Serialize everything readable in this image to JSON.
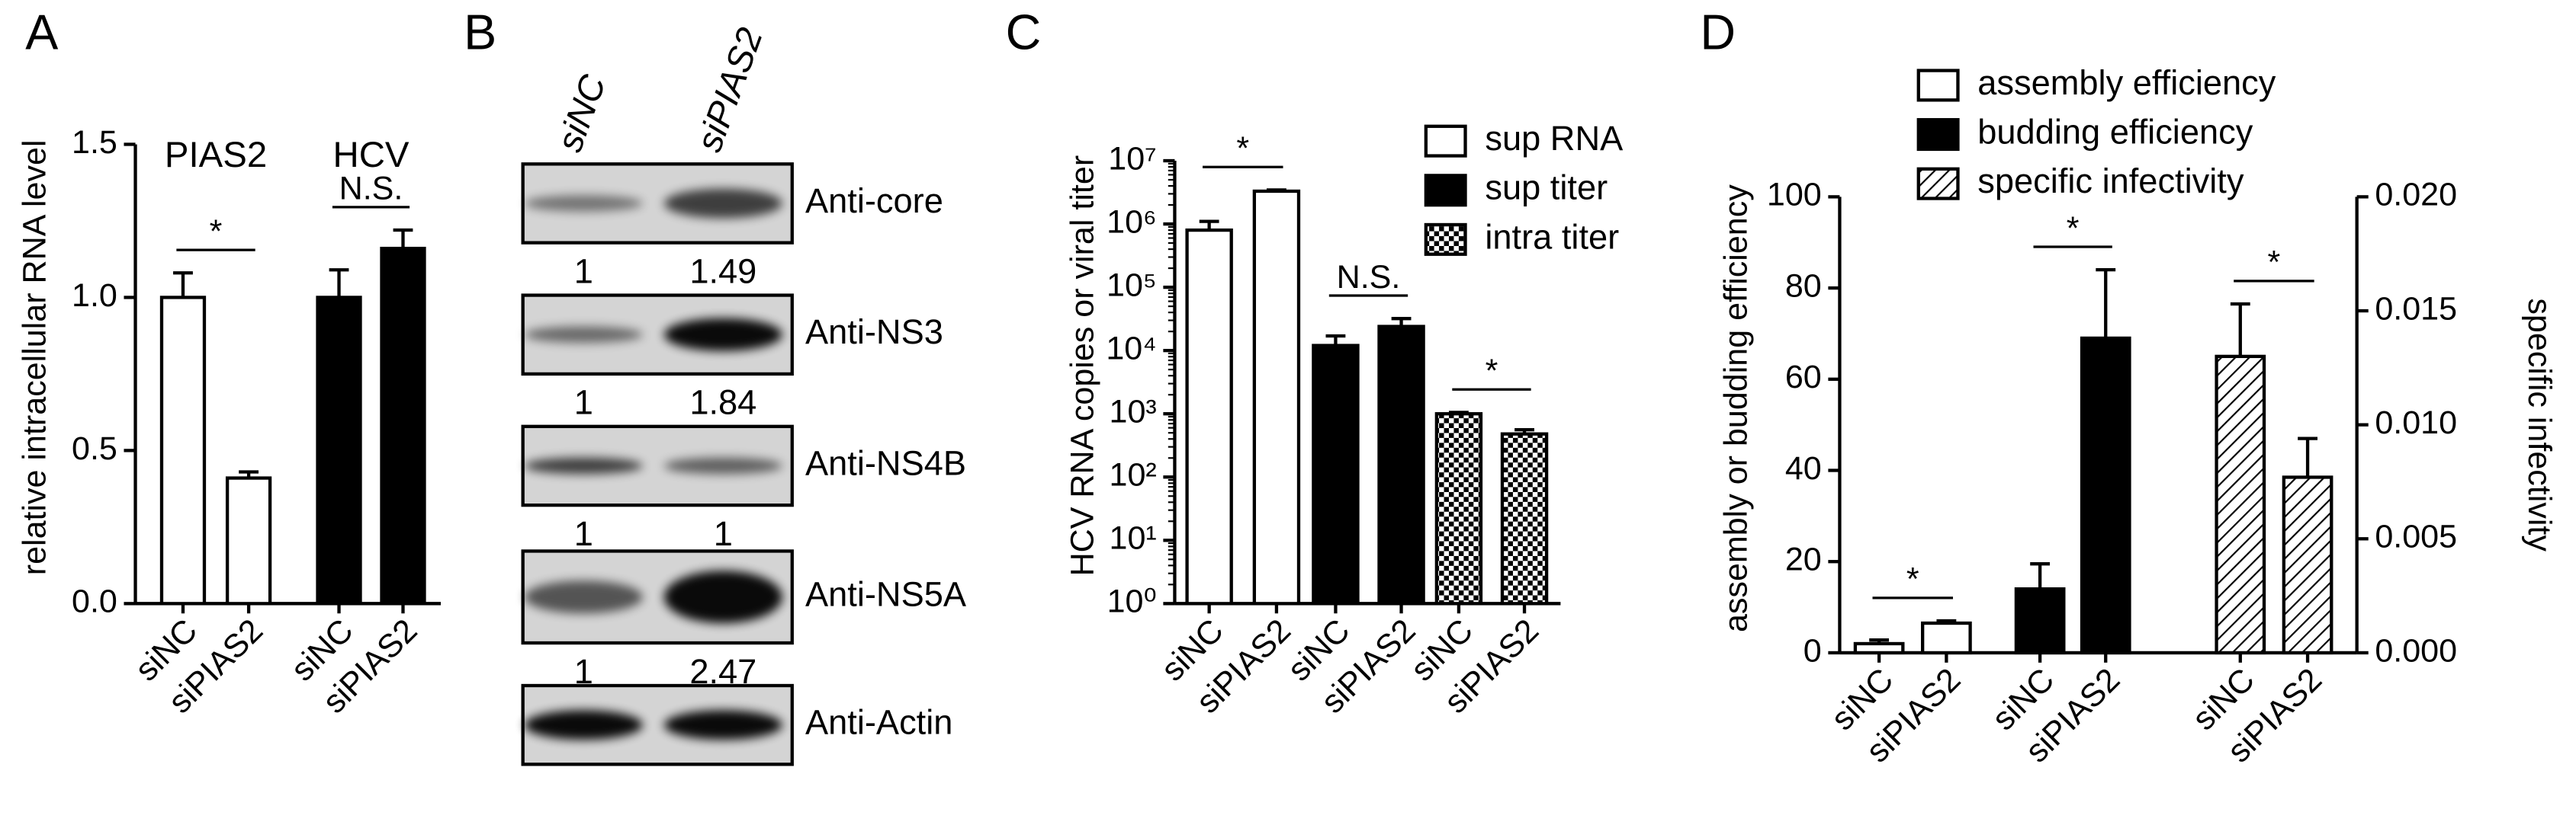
{
  "chart_data": [
    {
      "type": "bar",
      "panel": "A",
      "ylabel": "relative intracellular RNA level",
      "legend": "none",
      "categories": [
        "siNC",
        "siPIAS2",
        "siNC",
        "siPIAS2"
      ],
      "series": [
        {
          "name": "PIAS2",
          "color": "#ffffff",
          "values": [
            1.0,
            0.41,
            null,
            null
          ],
          "errors": [
            0.08,
            0.02,
            null,
            null
          ]
        },
        {
          "name": "HCV",
          "color": "#000000",
          "values": [
            null,
            null,
            1.0,
            1.16
          ],
          "errors": [
            null,
            null,
            0.09,
            0.06
          ]
        }
      ],
      "ylim": [
        0,
        1.5
      ],
      "yticks": [
        {
          "value": 0,
          "label": "0.0"
        },
        {
          "value": 0.5,
          "label": "0.5"
        },
        {
          "value": 1,
          "label": "1.0"
        },
        {
          "value": 1.5,
          "label": "1.5"
        }
      ],
      "annotations": [
        {
          "text": "*",
          "between": [
            0,
            1
          ]
        },
        {
          "text": "N.S.",
          "between": [
            2,
            3
          ]
        }
      ]
    },
    {
      "type": "blot",
      "panel": "B",
      "lanes": [
        "siNC",
        "siPIAS2"
      ],
      "rows": [
        {
          "antibody": "Anti-core",
          "ratios": [
            1,
            1.49
          ]
        },
        {
          "antibody": "Anti-NS3",
          "ratios": [
            1,
            1.84
          ]
        },
        {
          "antibody": "Anti-NS4B",
          "ratios": [
            1,
            1
          ]
        },
        {
          "antibody": "Anti-NS5A",
          "ratios": [
            1,
            2.47
          ]
        },
        {
          "antibody": "Anti-Actin"
        }
      ]
    },
    {
      "type": "bar",
      "panel": "C",
      "ylabel": "HCV RNA copies or viral titer",
      "legend": "upper right",
      "log_scale": true,
      "categories": [
        "siNC",
        "siPIAS2",
        "siNC",
        "siPIAS2",
        "siNC",
        "siPIAS2"
      ],
      "series": [
        {
          "name": "sup RNA",
          "color": "#ffffff",
          "values": [
            800000,
            3300000,
            null,
            null,
            null,
            null
          ],
          "errors": [
            300000,
            150000,
            null,
            null,
            null,
            null
          ]
        },
        {
          "name": "sup titer",
          "color": "#000000",
          "values": [
            null,
            null,
            12000,
            24000,
            null,
            null
          ],
          "errors": [
            null,
            null,
            5000,
            8000,
            null,
            null
          ]
        },
        {
          "name": "intra titer",
          "color": "#000000",
          "pattern": "checker",
          "values": [
            null,
            null,
            null,
            null,
            1000,
            480
          ],
          "errors": [
            null,
            null,
            null,
            null,
            50,
            80
          ]
        }
      ],
      "ylim": [
        1,
        10000000
      ],
      "yticks": [
        {
          "value": 1,
          "label": "10⁰"
        },
        {
          "value": 10,
          "label": "10¹"
        },
        {
          "value": 100,
          "label": "10²"
        },
        {
          "value": 1000,
          "label": "10³"
        },
        {
          "value": 10000,
          "label": "10⁴"
        },
        {
          "value": 100000,
          "label": "10⁵"
        },
        {
          "value": 1000000,
          "label": "10⁶"
        },
        {
          "value": 10000000,
          "label": "10⁷"
        }
      ],
      "annotations": [
        {
          "text": "*",
          "between": [
            0,
            1
          ]
        },
        {
          "text": "N.S.",
          "between": [
            2,
            3
          ]
        },
        {
          "text": "*",
          "between": [
            4,
            5
          ]
        }
      ]
    },
    {
      "type": "bar",
      "panel": "D",
      "ylabel": "assembly or budding efficiency",
      "y2label": "specific infectivity",
      "legend": "top",
      "categories": [
        "siNC",
        "siPIAS2",
        "siNC",
        "siPIAS2",
        "siNC",
        "siPIAS2"
      ],
      "series": [
        {
          "name": "assembly efficiency",
          "color": "#ffffff",
          "values": [
            2.0,
            6.5,
            null,
            null,
            null,
            null
          ],
          "errors": [
            0.8,
            0.5,
            null,
            null,
            null,
            null
          ]
        },
        {
          "name": "budding efficiency",
          "color": "#000000",
          "values": [
            null,
            null,
            14,
            69,
            null,
            null
          ],
          "errors": [
            null,
            null,
            5.5,
            15,
            null,
            null
          ]
        },
        {
          "name": "specific infectivity",
          "color": "#000000",
          "pattern": "hatch",
          "axis": "y2",
          "values": [
            null,
            null,
            null,
            null,
            0.013,
            0.0077
          ],
          "errors": [
            null,
            null,
            null,
            null,
            0.0023,
            0.0017
          ]
        }
      ],
      "ylim": [
        0,
        100
      ],
      "yticks": [
        0,
        20,
        40,
        60,
        80,
        100
      ],
      "y2lim": [
        0,
        0.02
      ],
      "y2ticks": [
        {
          "value": 0,
          "label": "0.000"
        },
        {
          "value": 0.005,
          "label": "0.005"
        },
        {
          "value": 0.01,
          "label": "0.010"
        },
        {
          "value": 0.015,
          "label": "0.015"
        },
        {
          "value": 0.02,
          "label": "0.020"
        }
      ],
      "annotations": [
        {
          "text": "*",
          "between": [
            0,
            1
          ]
        },
        {
          "text": "*",
          "between": [
            2,
            3
          ]
        },
        {
          "text": "*",
          "between": [
            4,
            5
          ]
        }
      ]
    }
  ]
}
